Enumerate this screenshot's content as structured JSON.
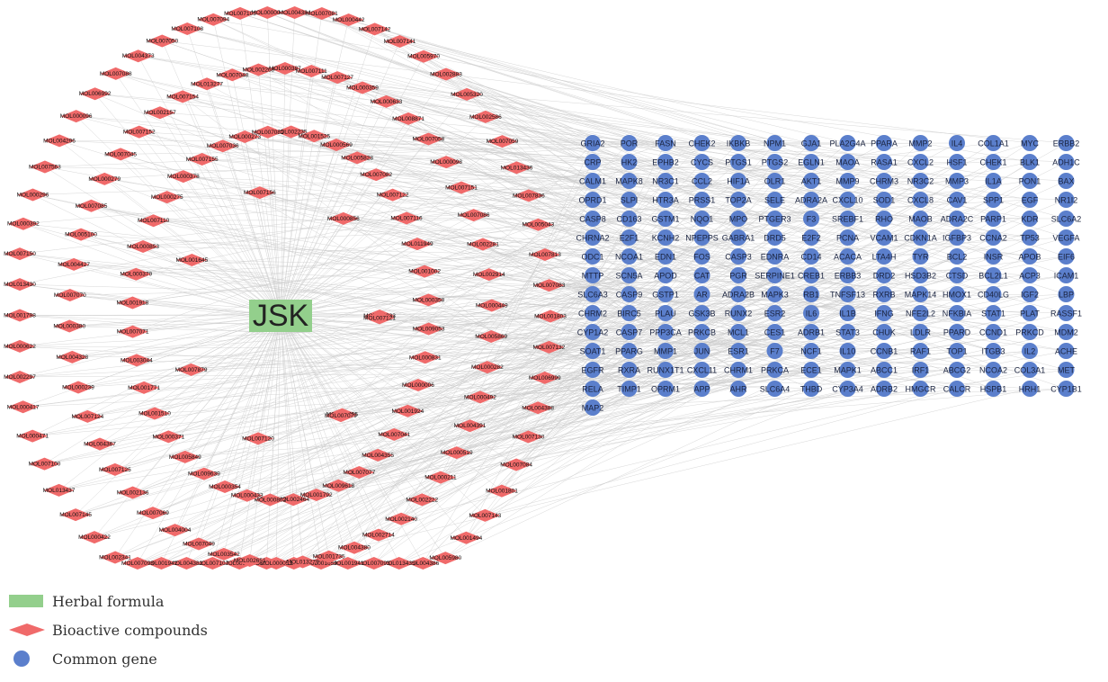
{
  "colors": {
    "edge": "#c9c9c9",
    "herb": "#93cf8c",
    "compound": "#f06a6a",
    "gene": "#5b7fcc",
    "gene_text": "#ffffff",
    "text": "#222222"
  },
  "center": {
    "label": "JSK"
  },
  "compounds": [
    "MOL000004",
    "MOL004384",
    "MOL007081",
    "MOL000442",
    "MOL007142",
    "MOL007141",
    "MOL005970",
    "MOL002883",
    "MOL005320",
    "MOL002586",
    "MOL007059",
    "MOL013436",
    "MOL007836",
    "MOL005043",
    "MOL007813",
    "MOL007083",
    "MOL001803",
    "MOL007132",
    "MOL006999",
    "MOL004388",
    "MOL007130",
    "MOL007084",
    "MOL001801",
    "MOL007143",
    "MOL001494",
    "MOL005980",
    "MOL004386",
    "MOL013435",
    "MOL007093",
    "MOL001941",
    "MOL001659",
    "MOL005384",
    "MOL007819",
    "MOL000283",
    "MOL007107",
    "MOL004382",
    "MOL001942",
    "MOL007098",
    "MOL002341",
    "MOL000422",
    "MOL007145",
    "MOL013437",
    "MOL007100",
    "MOL000471",
    "MOL000417",
    "MOL002297",
    "MOL000622",
    "MOL001798",
    "MOL013430",
    "MOL007150",
    "MOL000392",
    "MOL000296",
    "MOL007563",
    "MOL004296",
    "MOL000096",
    "MOL006992",
    "MOL007088",
    "MOL004373",
    "MOL007050",
    "MOL007108",
    "MOL007094",
    "MOL007105",
    "MOL000387",
    "MOL007111",
    "MOL007127",
    "MOL000359",
    "MOL000633",
    "MOL008871",
    "MOL007058",
    "MOL000098",
    "MOL007151",
    "MOL007086",
    "MOL002281",
    "MOL002914",
    "MOL000449",
    "MOL005869",
    "MOL000282",
    "MOL000492",
    "MOL004391",
    "MOL000519",
    "MOL000211",
    "MOL002222",
    "MOL002140",
    "MOL002714",
    "MOL004380",
    "MOL001735",
    "MOL013279",
    "MOL000053",
    "MOL002651",
    "MOL003542",
    "MOL007049",
    "MOL004004",
    "MOL007069",
    "MOL002136",
    "MOL007125",
    "MOL004367",
    "MOL007124",
    "MOL000239",
    "MOL004328",
    "MOL000380",
    "MOL007070",
    "MOL004427",
    "MOL005100",
    "MOL007085",
    "MOL000279",
    "MOL007045",
    "MOL007152",
    "MOL002157",
    "MOL007154",
    "MOL013277",
    "MOL007048",
    "MOL002268",
    "MOL002235",
    "MOL001525",
    "MOL000569",
    "MOL005828",
    "MOL007082",
    "MOL007122",
    "MOL007116",
    "MOL011949",
    "MOL001002",
    "MOL000358",
    "MOL009053",
    "MOL000831",
    "MOL000006",
    "MOL001924",
    "MOL007041",
    "MOL004355",
    "MOL007077",
    "MOL009618",
    "MOL001792",
    "MOL002464",
    "MOL000862",
    "MOL000433",
    "MOL000354",
    "MOL009639",
    "MOL005849",
    "MOL000371",
    "MOL001510",
    "MOL001771",
    "MOL003044",
    "MOL007071",
    "MOL001918",
    "MOL000379",
    "MOL000853",
    "MOL007110",
    "MOL000275",
    "MOL000378",
    "MOL007155",
    "MOL007036",
    "MOL000273",
    "MOL007081",
    "MOL000033",
    "MOL011455",
    "MOL007120",
    "MOL007879",
    "MOL001645",
    "MOL007156",
    "MOL000856",
    "MOL007121",
    "MOL007079"
  ],
  "genes": [
    [
      "GRIA2",
      "POR",
      "FASN",
      "CHEK2",
      "IKBKB",
      "NPM1",
      "GJA1",
      "PLA2G4A",
      "PPARA",
      "MMP2",
      "IL4",
      "COL1A1",
      "MYC",
      "ERBB2"
    ],
    [
      "CRP",
      "HK2",
      "EPHB2",
      "CYCS",
      "PTGS1",
      "PTGS2",
      "EGLN1",
      "MAOA",
      "RASA1",
      "CXCL2",
      "HSF1",
      "CHEK1",
      "BLK1",
      "ADH1C"
    ],
    [
      "CALM1",
      "MAPK8",
      "NR3C1",
      "CCL2",
      "HIF1A",
      "OLR1",
      "AKT1",
      "MMP9",
      "CHRM3",
      "NR3C2",
      "MMP3",
      "IL1A",
      "PON1",
      "BAX"
    ],
    [
      "OPRD1",
      "SLPI",
      "HTR3A",
      "PRSS1",
      "TOP2A",
      "SELE",
      "ADRA2A",
      "CXCL10",
      "SOD1",
      "CXCL8",
      "CAV1",
      "SPP1",
      "EGF",
      "NR1I2"
    ],
    [
      "CASP8",
      "CD163",
      "GSTM1",
      "NQO1",
      "MPO",
      "PTGER3",
      "F3",
      "SREBF1",
      "RHO",
      "MAOB",
      "ADRA2C",
      "PARP1",
      "KDR",
      "SLC6A2"
    ],
    [
      "CHRNA2",
      "E2F1",
      "KCNH2",
      "NPEPPS",
      "GABRA1",
      "DRD5",
      "E2F2",
      "PCNA",
      "VCAM1",
      "CDKN1A",
      "IGFBP3",
      "CCNA2",
      "TP53",
      "VEGFA"
    ],
    [
      "ODC1",
      "NCOA1",
      "EDN1",
      "FOS",
      "CASP3",
      "EDNRA",
      "CD14",
      "ACACA",
      "LTA4H",
      "TYR",
      "BCL2",
      "INSR",
      "APOB",
      "EIF6"
    ],
    [
      "MTTP",
      "SCN5A",
      "APOD",
      "CAT",
      "PGR",
      "SERPINE1",
      "CREB1",
      "ERBB3",
      "DRD2",
      "HSD3B2",
      "CTSD",
      "BCL2L1",
      "ACP3",
      "ICAM1"
    ],
    [
      "SLC6A3",
      "CASP9",
      "GSTP1",
      "AR",
      "ADRA2B",
      "MAPK3",
      "RB1",
      "TNFSF13",
      "RXRB",
      "MAPK14",
      "HMOX1",
      "CD40LG",
      "IGF2",
      "LBP"
    ],
    [
      "CHRM2",
      "BIRC5",
      "PLAU",
      "GSK3B",
      "RUNX2",
      "ESR2",
      "IL6",
      "IL1B",
      "IFNG",
      "NFE2L2",
      "NFKBIA",
      "STAT1",
      "PLAT",
      "RASSF1"
    ],
    [
      "CYP1A2",
      "CASP7",
      "PPP3CA",
      "PRKCB",
      "MCL1",
      "CES1",
      "ADRB1",
      "STAT3",
      "CHUK",
      "LDLR",
      "PPARD",
      "CCND1",
      "PRKCD",
      "MDM2"
    ],
    [
      "SOAT1",
      "PPARG",
      "MMP1",
      "JUN",
      "ESR1",
      "F7",
      "NCF1",
      "IL10",
      "CCNB1",
      "RAF1",
      "TOP1",
      "ITGB3",
      "IL2",
      "ACHE"
    ],
    [
      "EGFR",
      "RXRA",
      "RUNX1T1",
      "CXCL11",
      "CHRM1",
      "PRKCA",
      "ECE1",
      "MAPK1",
      "ABCC1",
      "IRF1",
      "ABCG2",
      "NCOA2",
      "COL3A1",
      "MET"
    ],
    [
      "RELA",
      "TIMP1",
      "OPRM1",
      "APP",
      "AHR",
      "SLC6A4",
      "THBD",
      "CYP3A4",
      "ADRB2",
      "HMGCR",
      "CALCR",
      "HSPB1",
      "HRH1",
      "CYP1B1"
    ],
    [
      "MAP2"
    ]
  ],
  "legend": {
    "herbal": "Herbal formula",
    "compounds": "Bioactive compounds",
    "gene": "Common gene"
  }
}
